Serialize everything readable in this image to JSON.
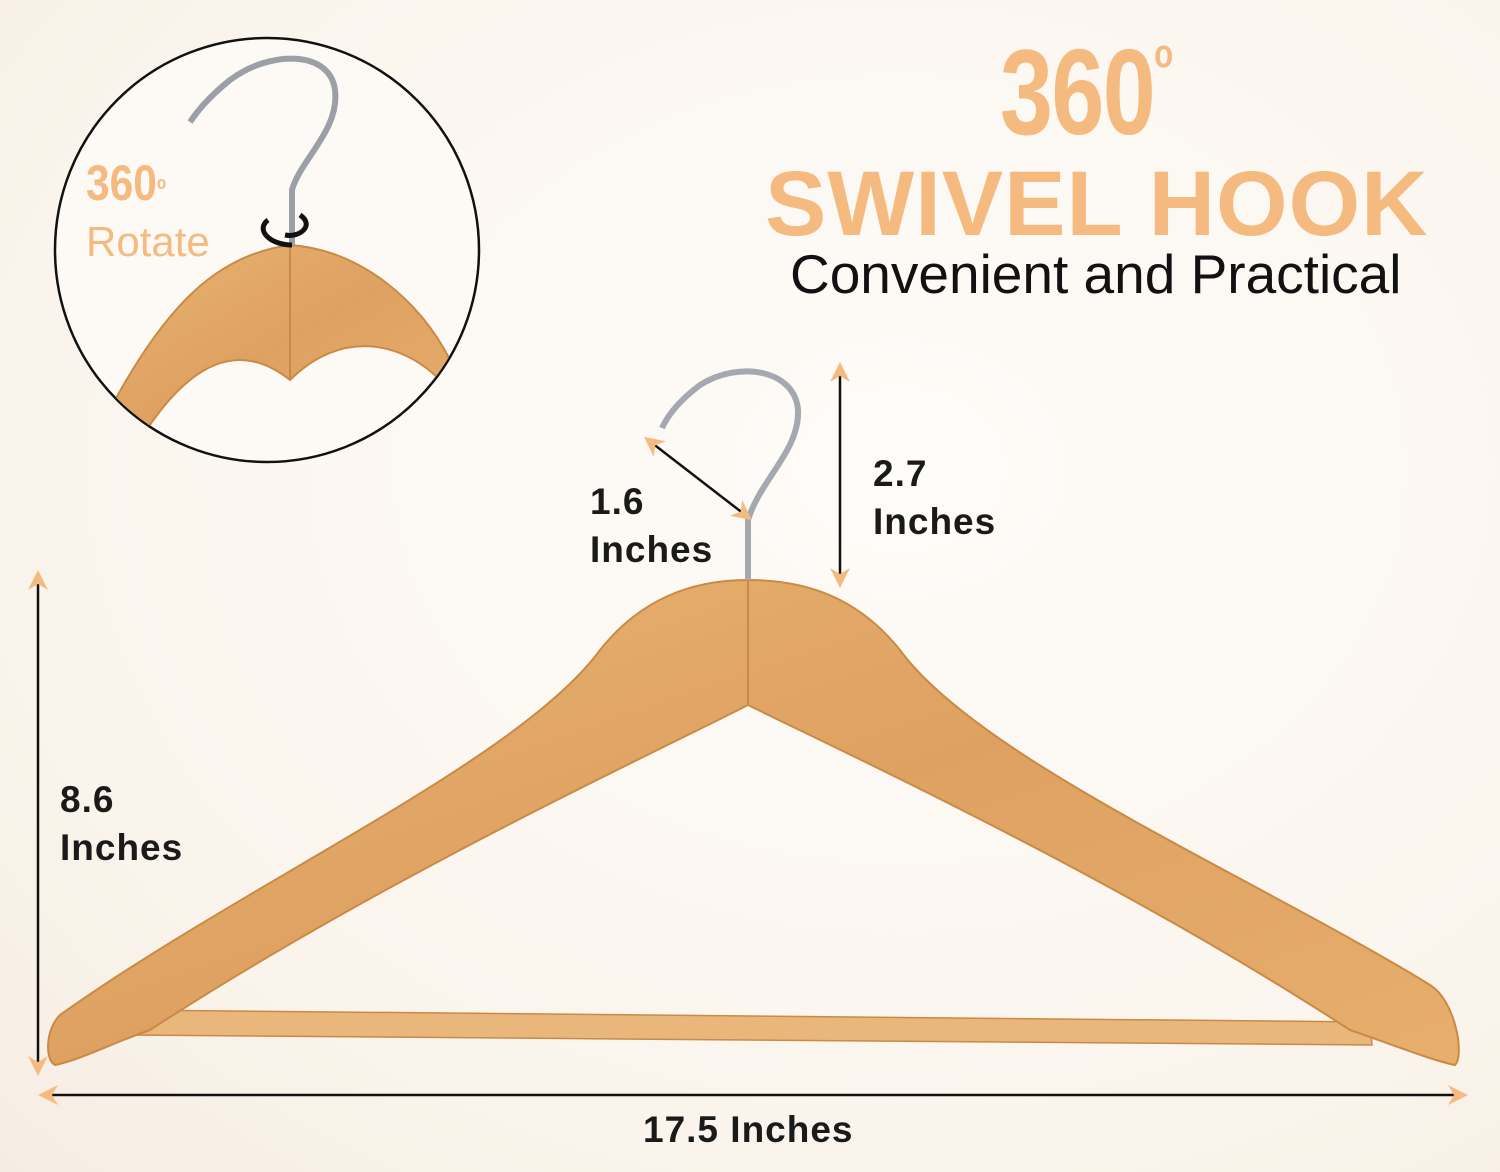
{
  "headline": {
    "number": "360",
    "degree": "o",
    "title": "SWIVEL HOOK",
    "subtitle": "Convenient and Practical"
  },
  "inset": {
    "number": "360",
    "degree": "o",
    "label": "Rotate"
  },
  "dimensions": {
    "hook_width": {
      "value": "1.6",
      "unit": "Inches"
    },
    "hook_height": {
      "value": "2.7",
      "unit": "Inches"
    },
    "hanger_height": {
      "value": "8.6",
      "unit": "Inches"
    },
    "hanger_width": "17.5 Inches"
  },
  "colors": {
    "accent": "#f5ba80",
    "wood": "#e3a865",
    "background": "#faf4ec",
    "text": "#1a1a1a"
  }
}
